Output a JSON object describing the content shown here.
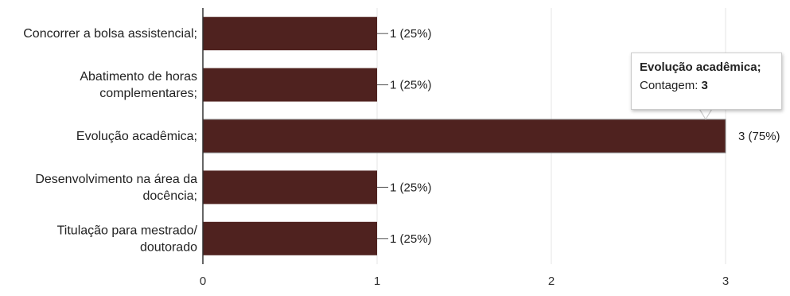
{
  "chart_data": {
    "type": "bar",
    "orientation": "horizontal",
    "categories": [
      [
        "Concorrer a bolsa assistencial;"
      ],
      [
        "Abatimento de horas",
        "complementares;"
      ],
      [
        "Evolução acadêmica;"
      ],
      [
        "Desenvolvimento na área da",
        "docência;"
      ],
      [
        "Titulação para mestrado/",
        "doutorado"
      ]
    ],
    "values": [
      1,
      1,
      3,
      1,
      1
    ],
    "data_labels": [
      "1 (25%)",
      "1 (25%)",
      "3 (75%)",
      "1 (25%)",
      "1 (25%)"
    ],
    "xlim": [
      0,
      3
    ],
    "xticks": [
      "0",
      "1",
      "2",
      "3"
    ],
    "grid": true,
    "bar_color": "#4f221f",
    "highlighted_index": 2,
    "title": "",
    "xlabel": "",
    "ylabel": ""
  },
  "tooltip": {
    "title": "Evolução acadêmica;",
    "count_label": "Contagem:",
    "count_value": "3"
  }
}
